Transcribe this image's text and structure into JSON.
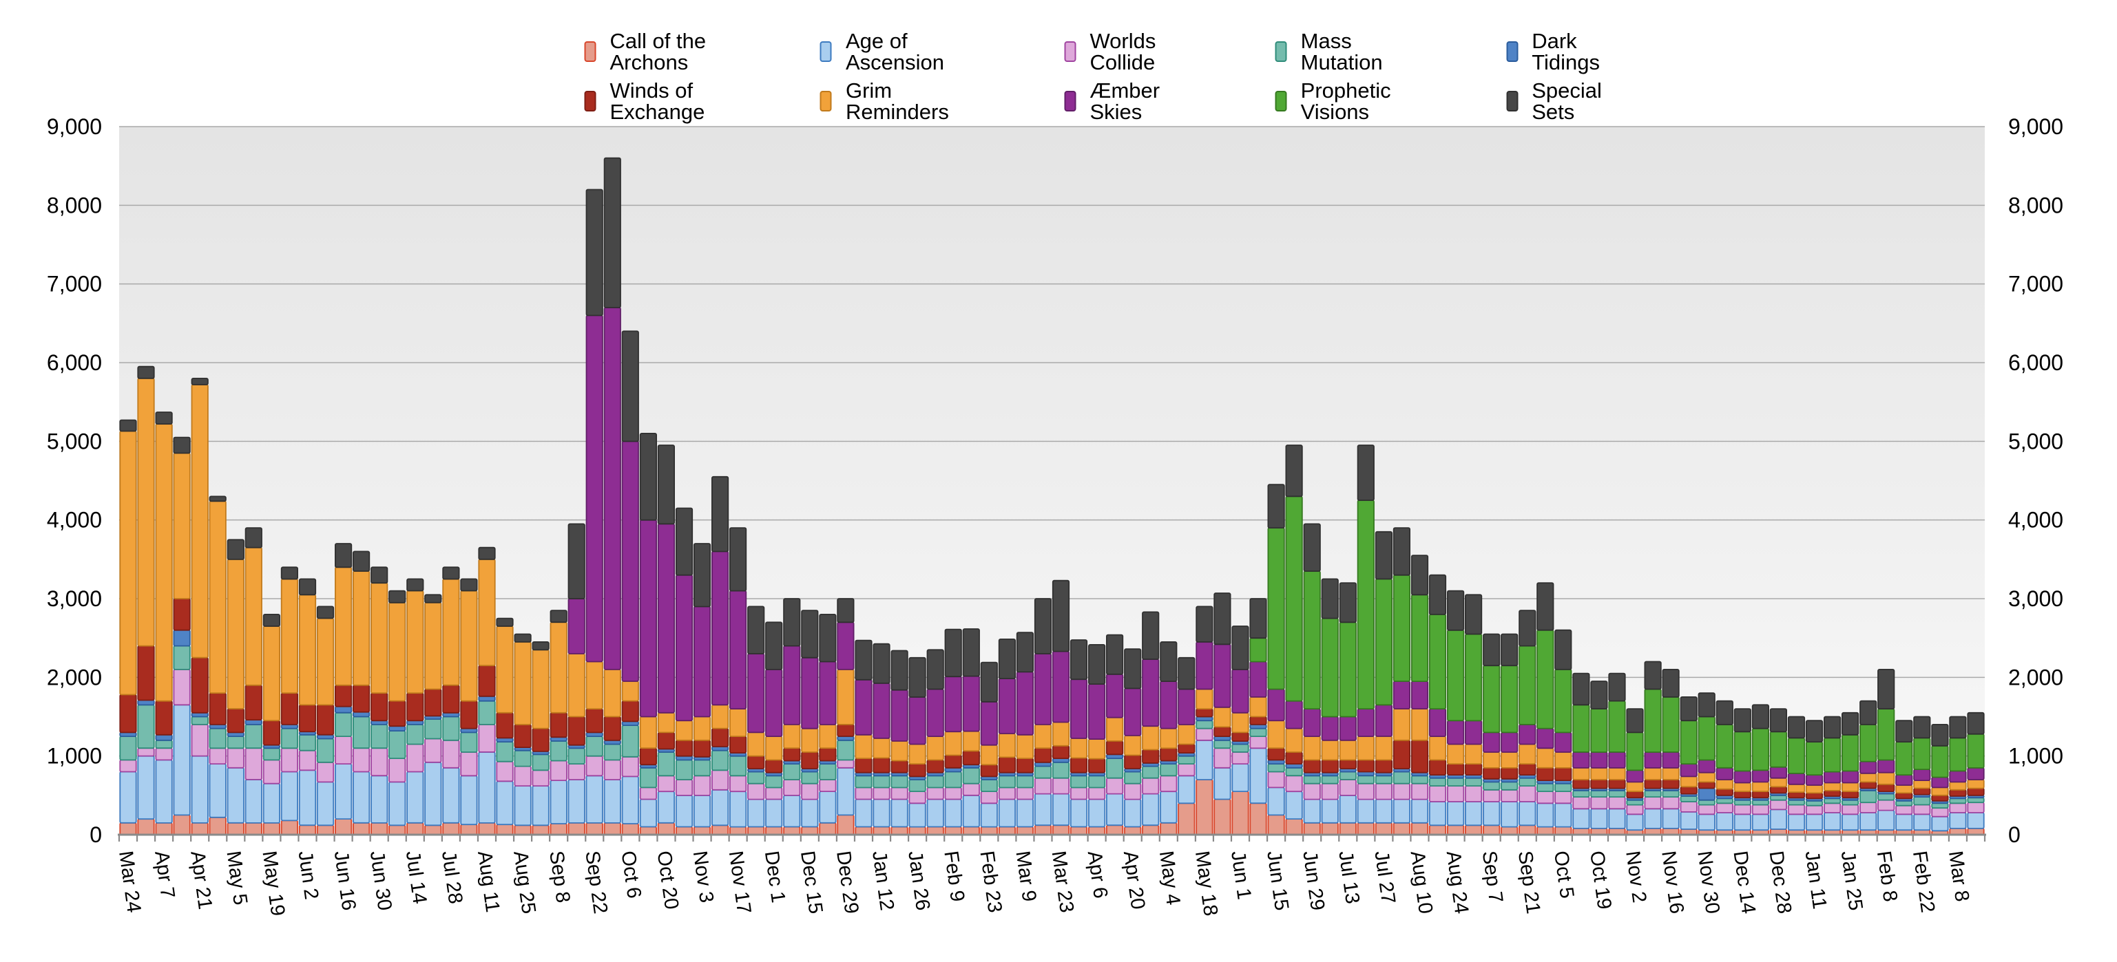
{
  "axes": {
    "y_tick_labels": [
      "0",
      "1,000",
      "2,000",
      "3,000",
      "4,000",
      "5,000",
      "6,000",
      "7,000",
      "8,000",
      "9,000"
    ],
    "y_axis_sides": "both",
    "x_label_rotation_deg": 82
  },
  "colors": {
    "plot_bg_top": "#e4e4e4",
    "plot_bg_bottom": "#f9f9f9",
    "gridline": "#a9a9a9",
    "axis_line": "#8a8a8a",
    "tick": "#8a8a8a",
    "label_text": "#000000"
  },
  "chart_data": {
    "type": "bar",
    "stacked": true,
    "title": "",
    "xlabel": "",
    "ylabel": "",
    "ylim": [
      0,
      9000
    ],
    "y_tick_interval": 1000,
    "grid": true,
    "legend_position": "top",
    "categories": [
      "Mar 24",
      "",
      "Apr 7",
      "",
      "Apr 21",
      "",
      "May 5",
      "",
      "May 19",
      "",
      "Jun 2",
      "",
      "Jun 16",
      "",
      "Jun 30",
      "",
      "Jul 14",
      "",
      "Jul 28",
      "",
      "Aug 11",
      "",
      "Aug 25",
      "",
      "Sep 8",
      "",
      "Sep 22",
      "",
      "Oct 6",
      "",
      "Oct 20",
      "",
      "Nov 3",
      "",
      "Nov 17",
      "",
      "Dec 1",
      "",
      "Dec 15",
      "",
      "Dec 29",
      "",
      "Jan 12",
      "",
      "Jan 26",
      "",
      "Feb 9",
      "",
      "Feb 23",
      "",
      "Mar 9",
      "",
      "Mar 23",
      "",
      "Apr 6",
      "",
      "Apr 20",
      "",
      "May 4",
      "",
      "May 18",
      "",
      "Jun 1",
      "",
      "Jun 15",
      "",
      "Jun 29",
      "",
      "Jul 13",
      "",
      "Jul 27",
      "",
      "Aug 10",
      "",
      "Aug 24",
      "",
      "Sep 7",
      "",
      "Sep 21",
      "",
      "Oct 5",
      "",
      "Oct 19",
      "",
      "Nov 2",
      "",
      "Nov 16",
      "",
      "Nov 30",
      "",
      "Dec 14",
      "",
      "Dec 28",
      "",
      "Jan 11",
      "",
      "Jan 25",
      "",
      "Feb 8",
      "",
      "Feb 22",
      "",
      "Mar 8",
      ""
    ],
    "series": [
      {
        "name": "Call of the Archons",
        "color": "#e59c8b",
        "stroke": "#d8462b",
        "values": [
          150,
          200,
          150,
          250,
          150,
          220,
          150,
          150,
          150,
          180,
          120,
          120,
          200,
          150,
          150,
          120,
          150,
          120,
          150,
          130,
          150,
          130,
          120,
          120,
          140,
          150,
          150,
          150,
          140,
          100,
          150,
          100,
          100,
          120,
          100,
          100,
          100,
          100,
          100,
          150,
          250,
          100,
          100,
          100,
          100,
          100,
          100,
          100,
          100,
          100,
          100,
          120,
          120,
          100,
          100,
          120,
          100,
          120,
          150,
          400,
          700,
          450,
          550,
          400,
          250,
          200,
          150,
          150,
          150,
          150,
          150,
          150,
          150,
          120,
          120,
          120,
          120,
          100,
          120,
          100,
          100,
          80,
          80,
          80,
          60,
          80,
          80,
          70,
          60,
          60,
          60,
          60,
          70,
          60,
          60,
          60,
          60,
          60,
          60,
          60,
          60,
          50,
          80,
          80
        ]
      },
      {
        "name": "Age of Ascension",
        "color": "#a9ceef",
        "stroke": "#3d7bc0",
        "values": [
          650,
          800,
          800,
          1400,
          850,
          680,
          700,
          550,
          500,
          620,
          700,
          550,
          700,
          650,
          600,
          550,
          650,
          800,
          700,
          620,
          900,
          550,
          500,
          500,
          550,
          550,
          600,
          550,
          600,
          350,
          400,
          400,
          400,
          450,
          450,
          350,
          350,
          400,
          350,
          400,
          600,
          350,
          350,
          350,
          300,
          350,
          350,
          400,
          300,
          350,
          350,
          400,
          400,
          350,
          350,
          400,
          350,
          400,
          400,
          350,
          500,
          400,
          350,
          700,
          350,
          350,
          300,
          300,
          350,
          300,
          300,
          300,
          300,
          300,
          300,
          300,
          300,
          320,
          300,
          300,
          300,
          250,
          250,
          250,
          200,
          250,
          250,
          220,
          200,
          220,
          200,
          200,
          250,
          200,
          200,
          220,
          200,
          220,
          250,
          200,
          200,
          180,
          200,
          200
        ]
      },
      {
        "name": "Worlds Collide",
        "color": "#dea8da",
        "stroke": "#a044a0",
        "values": [
          150,
          100,
          150,
          450,
          400,
          200,
          250,
          400,
          300,
          300,
          250,
          250,
          350,
          300,
          350,
          300,
          350,
          300,
          350,
          300,
          350,
          250,
          250,
          200,
          250,
          200,
          250,
          250,
          250,
          150,
          200,
          200,
          250,
          250,
          200,
          200,
          150,
          200,
          200,
          150,
          100,
          150,
          150,
          150,
          150,
          150,
          150,
          150,
          150,
          150,
          150,
          200,
          200,
          150,
          150,
          200,
          200,
          200,
          200,
          150,
          150,
          250,
          150,
          150,
          200,
          200,
          200,
          200,
          200,
          200,
          200,
          200,
          200,
          200,
          200,
          200,
          150,
          150,
          200,
          150,
          150,
          150,
          150,
          150,
          120,
          150,
          150,
          130,
          120,
          120,
          120,
          120,
          120,
          120,
          110,
          120,
          120,
          130,
          130,
          110,
          120,
          110,
          120,
          130
        ]
      },
      {
        "name": "Mass Mutation",
        "color": "#75bcad",
        "stroke": "#2f8c7a",
        "values": [
          300,
          550,
          100,
          300,
          100,
          250,
          150,
          300,
          150,
          250,
          200,
          300,
          300,
          400,
          300,
          350,
          250,
          250,
          300,
          250,
          300,
          250,
          200,
          200,
          250,
          200,
          250,
          200,
          400,
          250,
          300,
          250,
          200,
          250,
          250,
          150,
          150,
          200,
          150,
          200,
          250,
          150,
          150,
          150,
          150,
          150,
          200,
          200,
          150,
          150,
          150,
          150,
          200,
          150,
          150,
          250,
          150,
          150,
          150,
          100,
          100,
          100,
          100,
          100,
          100,
          100,
          100,
          100,
          100,
          100,
          100,
          150,
          100,
          100,
          100,
          100,
          100,
          100,
          100,
          100,
          100,
          80,
          80,
          80,
          60,
          80,
          80,
          70,
          60,
          60,
          60,
          60,
          60,
          60,
          60,
          60,
          60,
          150,
          80,
          60,
          100,
          60,
          60,
          60
        ]
      },
      {
        "name": "Dark Tidings",
        "color": "#4f83c6",
        "stroke": "#2b5c9c",
        "values": [
          50,
          60,
          70,
          200,
          50,
          50,
          50,
          60,
          40,
          50,
          40,
          50,
          80,
          60,
          50,
          60,
          50,
          40,
          50,
          50,
          60,
          50,
          40,
          40,
          50,
          40,
          50,
          50,
          50,
          40,
          40,
          50,
          40,
          50,
          40,
          40,
          40,
          40,
          40,
          40,
          50,
          40,
          40,
          40,
          40,
          40,
          50,
          40,
          40,
          40,
          40,
          50,
          50,
          40,
          40,
          50,
          40,
          40,
          40,
          40,
          50,
          50,
          40,
          50,
          50,
          50,
          40,
          40,
          40,
          50,
          40,
          40,
          40,
          40,
          40,
          40,
          40,
          40,
          40,
          40,
          40,
          30,
          30,
          30,
          30,
          30,
          30,
          30,
          150,
          40,
          30,
          30,
          30,
          30,
          30,
          30,
          30,
          30,
          30,
          30,
          30,
          30,
          30,
          30
        ]
      },
      {
        "name": "Winds of Exchange",
        "color": "#a92c1f",
        "stroke": "#7e1d13",
        "values": [
          480,
          690,
          430,
          400,
          700,
          400,
          300,
          440,
          310,
          400,
          340,
          380,
          270,
          340,
          350,
          320,
          350,
          340,
          350,
          350,
          390,
          320,
          290,
          290,
          310,
          360,
          300,
          300,
          260,
          210,
          210,
          200,
          210,
          230,
          210,
          160,
          160,
          160,
          210,
          160,
          150,
          180,
          185,
          150,
          160,
          160,
          160,
          175,
          150,
          195,
          180,
          180,
          160,
          185,
          175,
          170,
          170,
          170,
          160,
          110,
          100,
          120,
          110,
          100,
          150,
          150,
          160,
          160,
          110,
          150,
          160,
          360,
          410,
          190,
          140,
          140,
          140,
          140,
          140,
          160,
          160,
          110,
          110,
          110,
          80,
          110,
          110,
          90,
          80,
          80,
          80,
          80,
          80,
          70,
          70,
          70,
          80,
          80,
          90,
          70,
          80,
          70,
          80,
          90
        ]
      },
      {
        "name": "Grim Reminders",
        "color": "#f1a23a",
        "stroke": "#c17a1c",
        "values": [
          3350,
          3400,
          3520,
          1850,
          3470,
          2440,
          1900,
          1750,
          1200,
          1450,
          1400,
          1100,
          1500,
          1450,
          1400,
          1250,
          1300,
          1100,
          1350,
          1400,
          1350,
          1100,
          1050,
          1000,
          1150,
          800,
          600,
          600,
          250,
          400,
          250,
          250,
          300,
          300,
          350,
          300,
          300,
          300,
          300,
          300,
          700,
          300,
          250,
          250,
          250,
          300,
          300,
          250,
          250,
          300,
          300,
          300,
          300,
          250,
          250,
          300,
          250,
          300,
          250,
          250,
          250,
          250,
          250,
          250,
          350,
          300,
          300,
          250,
          250,
          300,
          300,
          400,
          400,
          300,
          250,
          250,
          200,
          200,
          250,
          250,
          200,
          150,
          150,
          150,
          120,
          150,
          150,
          130,
          120,
          120,
          110,
          120,
          110,
          100,
          100,
          100,
          110,
          110,
          150,
          100,
          100,
          100,
          100,
          110
        ]
      },
      {
        "name": "Æmber Skies",
        "color": "#8e2d93",
        "stroke": "#611e68",
        "values": [
          0,
          0,
          0,
          0,
          0,
          0,
          0,
          0,
          0,
          0,
          0,
          0,
          0,
          0,
          0,
          0,
          0,
          0,
          0,
          0,
          0,
          0,
          0,
          0,
          0,
          700,
          4400,
          4600,
          3050,
          2500,
          2400,
          1850,
          1400,
          1950,
          1500,
          1000,
          850,
          1000,
          900,
          800,
          600,
          700,
          700,
          650,
          600,
          600,
          700,
          700,
          550,
          700,
          800,
          900,
          900,
          750,
          700,
          550,
          600,
          850,
          600,
          450,
          600,
          800,
          550,
          450,
          400,
          350,
          350,
          300,
          300,
          350,
          400,
          350,
          350,
          350,
          300,
          300,
          250,
          250,
          250,
          250,
          250,
          200,
          200,
          200,
          150,
          200,
          200,
          160,
          160,
          150,
          150,
          150,
          140,
          140,
          130,
          140,
          150,
          150,
          160,
          130,
          140,
          130,
          140,
          150
        ]
      },
      {
        "name": "Prophetic Visions",
        "color": "#50a834",
        "stroke": "#35791f",
        "values": [
          0,
          0,
          0,
          0,
          0,
          0,
          0,
          0,
          0,
          0,
          0,
          0,
          0,
          0,
          0,
          0,
          0,
          0,
          0,
          0,
          0,
          0,
          0,
          0,
          0,
          0,
          0,
          0,
          0,
          0,
          0,
          0,
          0,
          0,
          0,
          0,
          0,
          0,
          0,
          0,
          0,
          0,
          0,
          0,
          0,
          0,
          0,
          0,
          0,
          0,
          0,
          0,
          0,
          0,
          0,
          0,
          0,
          0,
          0,
          0,
          0,
          0,
          0,
          300,
          2050,
          2600,
          1750,
          1250,
          1200,
          2650,
          1600,
          1350,
          1100,
          1200,
          1150,
          1100,
          850,
          850,
          1000,
          1250,
          800,
          600,
          550,
          650,
          480,
          800,
          700,
          550,
          550,
          550,
          500,
          530,
          450,
          450,
          420,
          430,
          460,
          470,
          650,
          420,
          400,
          400,
          420,
          430
        ]
      },
      {
        "name": "Special Sets",
        "color": "#474747",
        "stroke": "#303030",
        "values": [
          140,
          150,
          150,
          200,
          80,
          60,
          250,
          250,
          150,
          150,
          200,
          150,
          300,
          250,
          200,
          150,
          150,
          100,
          150,
          150,
          150,
          100,
          100,
          100,
          150,
          950,
          1600,
          1900,
          1400,
          1100,
          1000,
          850,
          800,
          950,
          800,
          600,
          600,
          600,
          600,
          600,
          300,
          500,
          500,
          500,
          500,
          500,
          600,
          600,
          500,
          500,
          500,
          700,
          900,
          500,
          500,
          500,
          500,
          600,
          500,
          400,
          450,
          650,
          550,
          500,
          550,
          650,
          600,
          500,
          500,
          700,
          600,
          600,
          500,
          500,
          500,
          500,
          400,
          400,
          450,
          600,
          500,
          400,
          350,
          350,
          300,
          350,
          350,
          300,
          300,
          300,
          290,
          300,
          290,
          270,
          270,
          270,
          280,
          300,
          500,
          270,
          270,
          270,
          270,
          270
        ]
      }
    ]
  }
}
